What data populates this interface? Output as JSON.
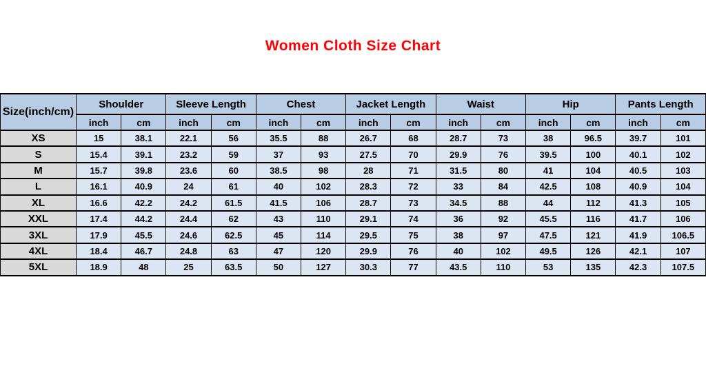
{
  "title": "Women Cloth Size Chart",
  "colors": {
    "title": "#ff0000",
    "header_bg": "#b8cce4",
    "cell_bg": "#dce6f2",
    "size_column_bg": "#d9d9d9",
    "border": "#000000",
    "text": "#000000"
  },
  "chart_data": {
    "type": "table",
    "title": "Women Cloth Size Chart",
    "corner_header": "Size(inch/cm)",
    "column_groups": [
      "Shoulder",
      "Sleeve Length",
      "Chest",
      "Jacket Length",
      "Waist",
      "Hip",
      "Pants Length"
    ],
    "unit_headers": [
      "inch",
      "cm",
      "inch",
      "cm",
      "inch",
      "cm",
      "inch",
      "cm",
      "inch",
      "cm",
      "inch",
      "cm",
      "inch",
      "cm"
    ],
    "rows": [
      {
        "size": "XS",
        "values": [
          15,
          38.1,
          22.1,
          56,
          35.5,
          88,
          26.7,
          68,
          28.7,
          73,
          38,
          96.5,
          39.7,
          101
        ]
      },
      {
        "size": "S",
        "values": [
          15.4,
          39.1,
          23.2,
          59,
          37,
          93,
          27.5,
          70,
          29.9,
          76,
          39.5,
          100,
          40.1,
          102
        ]
      },
      {
        "size": "M",
        "values": [
          15.7,
          39.8,
          23.6,
          60,
          38.5,
          98,
          28,
          71,
          31.5,
          80,
          41,
          104,
          40.5,
          103
        ]
      },
      {
        "size": "L",
        "values": [
          16.1,
          40.9,
          24,
          61,
          40,
          102,
          28.3,
          72,
          33,
          84,
          42.5,
          108,
          40.9,
          104
        ]
      },
      {
        "size": "XL",
        "values": [
          16.6,
          42.2,
          24.2,
          61.5,
          41.5,
          106,
          28.7,
          73,
          34.5,
          88,
          44,
          112,
          41.3,
          105
        ]
      },
      {
        "size": "XXL",
        "values": [
          17.4,
          44.2,
          24.4,
          62,
          43,
          110,
          29.1,
          74,
          36,
          92,
          45.5,
          116,
          41.7,
          106
        ]
      },
      {
        "size": "3XL",
        "values": [
          17.9,
          45.5,
          24.6,
          62.5,
          45,
          114,
          29.5,
          75,
          38,
          97,
          47.5,
          121,
          41.9,
          106.5
        ]
      },
      {
        "size": "4XL",
        "values": [
          18.4,
          46.7,
          24.8,
          63,
          47,
          120,
          29.9,
          76,
          40,
          102,
          49.5,
          126,
          42.1,
          107
        ]
      },
      {
        "size": "5XL",
        "values": [
          18.9,
          48,
          25,
          63.5,
          50,
          127,
          30.3,
          77,
          43.5,
          110,
          53,
          135,
          42.3,
          107.5
        ]
      }
    ]
  }
}
